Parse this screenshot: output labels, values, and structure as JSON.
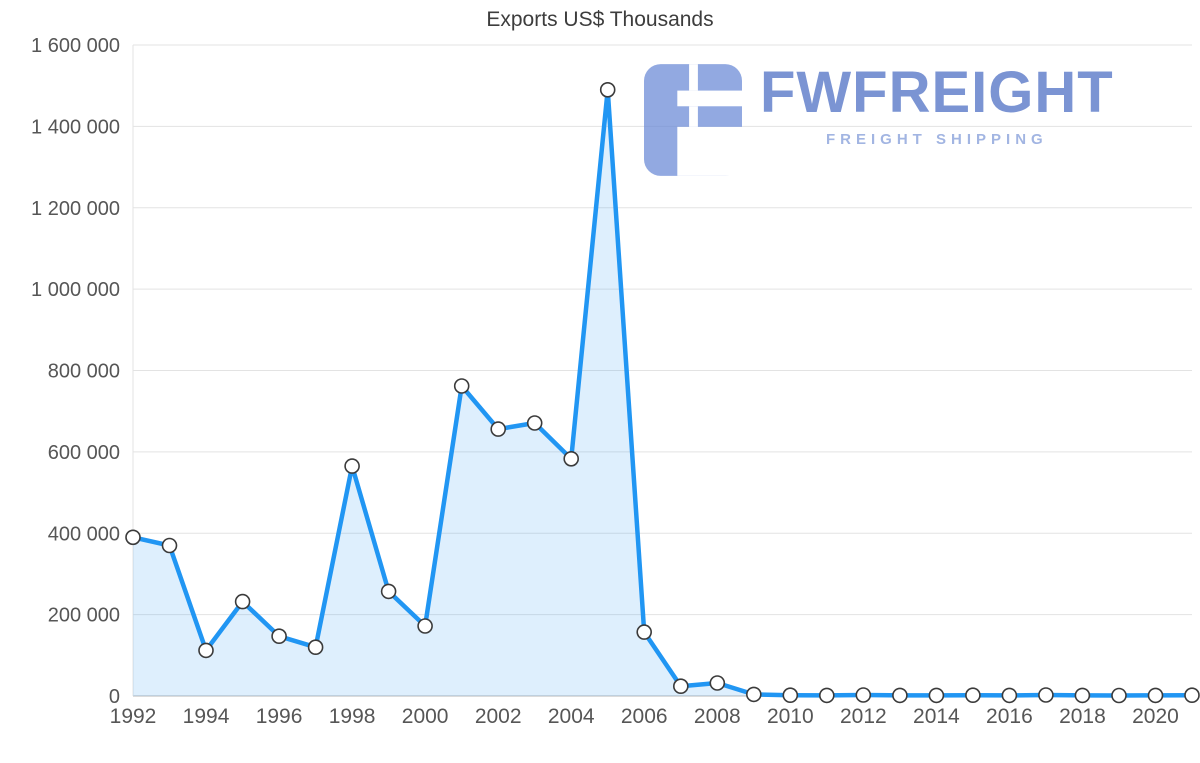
{
  "chart": {
    "title": "Exports US$ Thousands"
  },
  "watermark": {
    "brand": "FWFREIGHT",
    "tagline": "FREIGHT SHIPPING"
  },
  "chart_data": {
    "type": "area",
    "title": "Exports US$ Thousands",
    "xlabel": "",
    "ylabel": "",
    "x": [
      1992,
      1993,
      1994,
      1995,
      1996,
      1997,
      1998,
      1999,
      2000,
      2001,
      2002,
      2003,
      2004,
      2005,
      2006,
      2007,
      2008,
      2009,
      2010,
      2011,
      2012,
      2013,
      2014,
      2015,
      2016,
      2017,
      2018,
      2019,
      2020,
      2021
    ],
    "values": [
      390000,
      370000,
      112000,
      232000,
      147000,
      120000,
      565000,
      257000,
      172000,
      762000,
      656000,
      671000,
      583000,
      1490000,
      157000,
      24000,
      32000,
      4000,
      2000,
      1500,
      2500,
      1500,
      1500,
      2000,
      1500,
      2500,
      1500,
      1200,
      1500,
      2000
    ],
    "ylim": [
      0,
      1600000
    ],
    "y_ticks": [
      0,
      200000,
      400000,
      600000,
      800000,
      1000000,
      1200000,
      1400000,
      1600000
    ],
    "y_tick_labels": [
      "0",
      "200 000",
      "400 000",
      "600 000",
      "800 000",
      "1 000 000",
      "1 200 000",
      "1 400 000",
      "1 600 000"
    ],
    "x_ticks": [
      1992,
      1994,
      1996,
      1998,
      2000,
      2002,
      2004,
      2006,
      2008,
      2010,
      2012,
      2014,
      2016,
      2018,
      2020
    ],
    "x_tick_labels": [
      "1992",
      "1994",
      "1996",
      "1998",
      "2000",
      "2002",
      "2004",
      "2006",
      "2008",
      "2010",
      "2012",
      "2014",
      "2016",
      "2018",
      "2020"
    ],
    "grid": true,
    "legend": "none",
    "colors": {
      "line": "#2196f3",
      "fill": "rgba(33,150,243,0.15)",
      "marker_fill": "#ffffff",
      "marker_stroke": "#3b3b3b",
      "gridline": "#e3e3e3",
      "axis_line": "#cfcfcf",
      "tick_label": "#565656",
      "title": "#3d3d3d"
    }
  }
}
